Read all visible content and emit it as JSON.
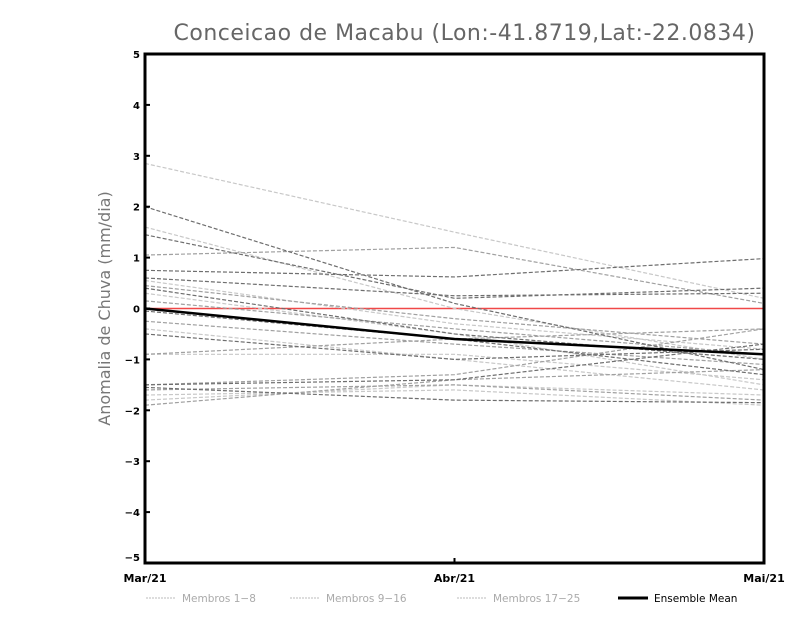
{
  "chart_data": {
    "type": "line",
    "title": "Conceicao de Macabu (Lon:-41.8719,Lat:-22.0834)",
    "xlabel": "",
    "ylabel": "Anomalia de Chuva (mm/dia)",
    "categories": [
      "Mar/21",
      "Abr/21",
      "Mai/21"
    ],
    "ylim": [
      -5,
      5
    ],
    "yticks": [
      "-5",
      "-4",
      "-3",
      "-2",
      "-1",
      "0",
      "1",
      "2",
      "3",
      "4",
      "5"
    ],
    "reference_line": {
      "value": 0,
      "color": "#f04848"
    },
    "legend_position": "bottom",
    "groups": [
      {
        "name": "Membros 1-8",
        "color": "#c8c8c8",
        "members": [
          [
            2.85,
            1.5,
            0.2
          ],
          [
            1.6,
            0.0,
            -1.0
          ],
          [
            0.55,
            -0.3,
            -0.8
          ],
          [
            0.3,
            -0.5,
            -1.5
          ],
          [
            -0.4,
            -1.0,
            -1.6
          ],
          [
            -0.9,
            -0.9,
            -1.4
          ],
          [
            -1.7,
            -1.6,
            -1.9
          ],
          [
            -1.8,
            -1.5,
            -1.7
          ]
        ]
      },
      {
        "name": "Membros 9-16",
        "color": "#a0a0a0",
        "members": [
          [
            1.05,
            1.2,
            0.1
          ],
          [
            0.45,
            -0.2,
            -0.7
          ],
          [
            0.15,
            -0.4,
            -0.9
          ],
          [
            -0.25,
            -0.7,
            -1.1
          ],
          [
            -0.9,
            -0.6,
            -0.4
          ],
          [
            -1.5,
            -1.3,
            -0.4
          ],
          [
            -1.6,
            -1.5,
            -1.8
          ],
          [
            -1.9,
            -1.4,
            -1.2
          ]
        ]
      },
      {
        "name": "Membros 17-25",
        "color": "#6e6e6e",
        "members": [
          [
            2.0,
            0.1,
            -1.2
          ],
          [
            1.45,
            0.2,
            0.4
          ],
          [
            0.75,
            0.62,
            0.98
          ],
          [
            0.6,
            0.25,
            0.3
          ],
          [
            0.4,
            -0.5,
            -1.0
          ],
          [
            -0.05,
            -0.6,
            -1.3
          ],
          [
            -0.5,
            -1.0,
            -0.8
          ],
          [
            -1.5,
            -1.4,
            -0.7
          ],
          [
            -1.55,
            -1.8,
            -1.85
          ]
        ]
      }
    ],
    "ensemble_mean": {
      "name": "Ensemble Mean",
      "color": "#000000",
      "values": [
        0.0,
        -0.6,
        -0.9
      ]
    }
  }
}
